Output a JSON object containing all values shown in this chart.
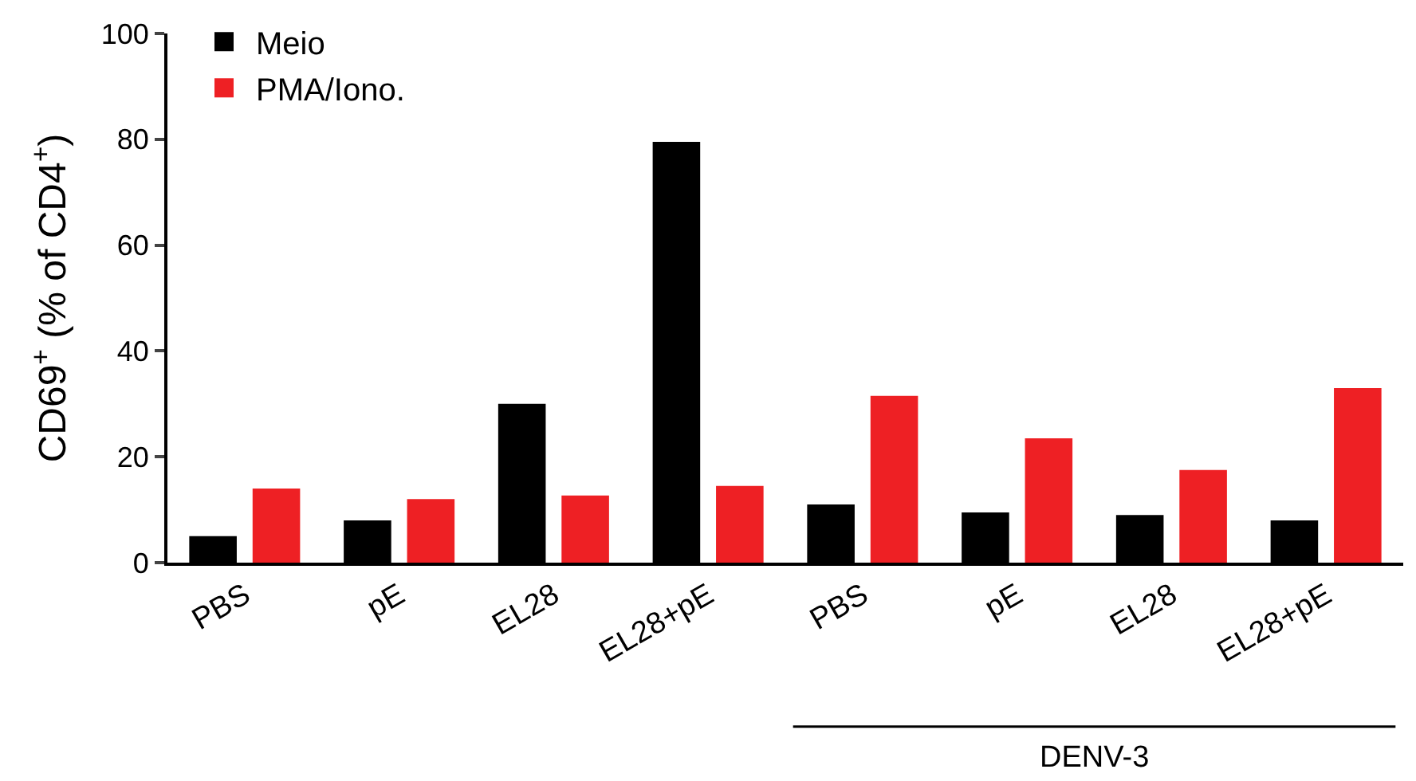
{
  "chart_data": {
    "type": "bar",
    "ylabel": "CD69$^{+}$ (% of CD4$^{+}$)",
    "categories": [
      "PBS",
      "pE",
      "EL28",
      "EL28+pE",
      "PBS",
      "pE",
      "EL28",
      "EL28+pE"
    ],
    "series": [
      {
        "name": "Meio",
        "color": "#000000",
        "values": [
          5,
          8,
          30,
          79.5,
          11,
          9.5,
          9,
          8
        ]
      },
      {
        "name": "PMA/Iono.",
        "color": "#ee2024",
        "values": [
          14,
          12,
          12.7,
          14.5,
          31.5,
          23.5,
          17.5,
          33
        ]
      }
    ],
    "ylim": [
      0,
      100
    ],
    "yticks": [
      0,
      20,
      40,
      60,
      80,
      100
    ],
    "legend": "top left",
    "annotations": [
      "DENV-3"
    ]
  }
}
